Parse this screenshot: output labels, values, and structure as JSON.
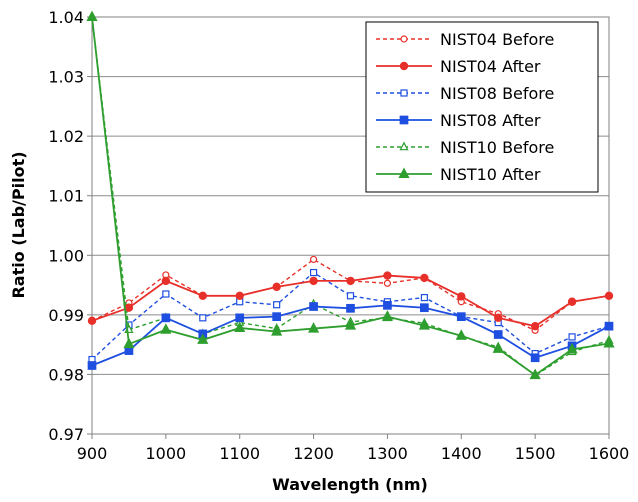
{
  "chart_data": {
    "type": "line",
    "xlabel": "Wavelength (nm)",
    "ylabel": "Ratio (Lab/Pilot)",
    "xlim": [
      900,
      1600
    ],
    "ylim": [
      0.97,
      1.04
    ],
    "xticks": [
      "900",
      "1000",
      "1100",
      "1200",
      "1300",
      "1400",
      "1500",
      "1600"
    ],
    "yticks": [
      "0.97",
      "0.98",
      "0.99",
      "1.00",
      "1.01",
      "1.02",
      "1.03",
      "1.04"
    ],
    "grid": "horizontal",
    "legend_position": "top-right",
    "x": [
      900,
      950,
      1000,
      1050,
      1100,
      1150,
      1200,
      1250,
      1300,
      1350,
      1400,
      1450,
      1500,
      1550,
      1600
    ],
    "series": [
      {
        "name": "NIST04 Before",
        "color": "#e8302a",
        "dash": true,
        "marker": "circle-open",
        "values": [
          0.989,
          0.992,
          0.9967,
          0.9932,
          0.9932,
          0.9947,
          0.9993,
          0.9957,
          0.9953,
          0.9962,
          0.9922,
          0.9902,
          0.9874,
          0.9922,
          0.9932
        ]
      },
      {
        "name": "NIST04 After",
        "color": "#e8302a",
        "dash": false,
        "marker": "circle",
        "values": [
          0.989,
          0.9912,
          0.9957,
          0.9932,
          0.9932,
          0.9947,
          0.9957,
          0.9957,
          0.9966,
          0.9962,
          0.9931,
          0.9895,
          0.9881,
          0.9922,
          0.9932
        ]
      },
      {
        "name": "NIST08 Before",
        "color": "#1e4fe0",
        "dash": true,
        "marker": "square-open",
        "values": [
          0.9825,
          0.9883,
          0.9935,
          0.9895,
          0.9922,
          0.9917,
          0.9971,
          0.9932,
          0.9922,
          0.9929,
          0.9897,
          0.9887,
          0.9835,
          0.9863,
          0.9881
        ]
      },
      {
        "name": "NIST08 After",
        "color": "#1e4fe0",
        "dash": false,
        "marker": "square",
        "values": [
          0.9815,
          0.984,
          0.9895,
          0.9868,
          0.9895,
          0.9897,
          0.9914,
          0.9911,
          0.9916,
          0.9912,
          0.9897,
          0.9867,
          0.9828,
          0.9848,
          0.9881
        ]
      },
      {
        "name": "NIST10 Before",
        "color": "#2e9e2e",
        "dash": true,
        "marker": "triangle-open",
        "values": [
          1.04,
          0.9875,
          0.9895,
          0.9868,
          0.9887,
          0.9877,
          0.9918,
          0.9888,
          0.9895,
          0.9886,
          0.9864,
          0.9846,
          0.9798,
          0.9838,
          0.9857
        ]
      },
      {
        "name": "NIST10 After",
        "color": "#2e9e2e",
        "dash": false,
        "marker": "triangle",
        "values": [
          1.04,
          0.9851,
          0.9875,
          0.9858,
          0.9878,
          0.9872,
          0.9877,
          0.9882,
          0.9897,
          0.9882,
          0.9865,
          0.9843,
          0.9799,
          0.9842,
          0.9852
        ]
      }
    ]
  }
}
